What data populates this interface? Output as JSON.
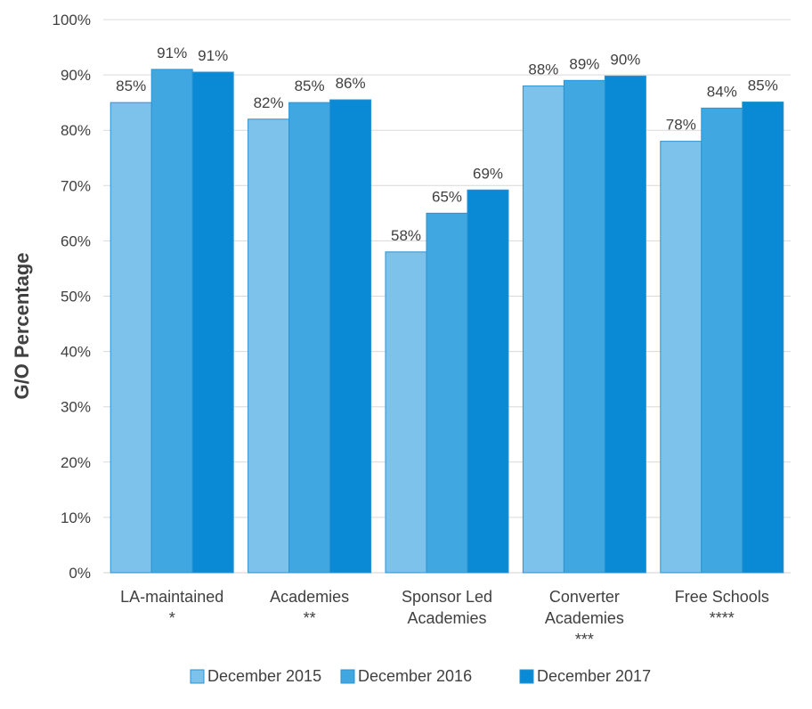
{
  "chart_data": {
    "type": "bar",
    "title": "",
    "xlabel": "",
    "ylabel": "G/O Percentage",
    "ylim": [
      0,
      100
    ],
    "yticks": [
      "0%",
      "10%",
      "20%",
      "30%",
      "40%",
      "50%",
      "60%",
      "70%",
      "80%",
      "90%",
      "100%"
    ],
    "grid": true,
    "legend_position": "bottom",
    "categories": [
      [
        "LA-maintained",
        "*"
      ],
      [
        "Academies",
        "**"
      ],
      [
        "Sponsor Led",
        "Academies"
      ],
      [
        "Converter",
        "Academies",
        "***"
      ],
      [
        "Free Schools",
        "****"
      ]
    ],
    "series": [
      {
        "name": "December 2015",
        "color": "#7dc2ea",
        "values": [
          85,
          82,
          58,
          88,
          78
        ],
        "labels": [
          "85%",
          "82%",
          "58%",
          "88%",
          "78%"
        ]
      },
      {
        "name": "December 2016",
        "color": "#40a7e0",
        "values": [
          91,
          85,
          65,
          89,
          84
        ],
        "labels": [
          "91%",
          "85%",
          "65%",
          "89%",
          "84%"
        ]
      },
      {
        "name": "December 2017",
        "color": "#0a8ad4",
        "values": [
          90.5,
          85.5,
          69.2,
          89.8,
          85.1
        ],
        "labels": [
          "91%",
          "86%",
          "69%",
          "90%",
          "85%"
        ]
      }
    ]
  }
}
